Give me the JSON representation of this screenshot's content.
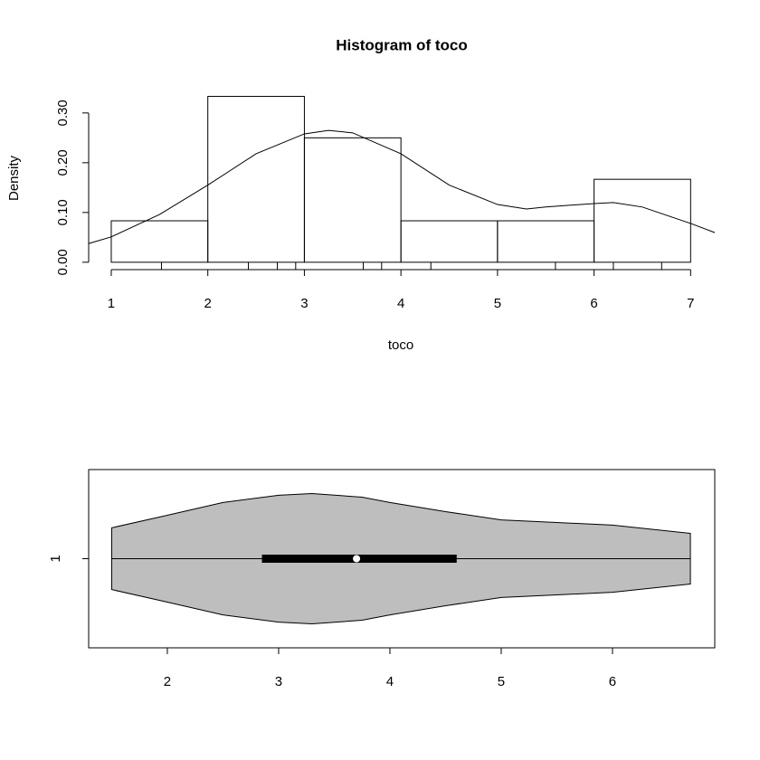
{
  "chart_data": [
    {
      "type": "histogram",
      "title": "Histogram of toco",
      "xlabel": "toco",
      "ylabel": "Density",
      "bins": [
        1,
        2,
        3,
        4,
        5,
        6,
        7
      ],
      "values": [
        0.0833,
        0.3333,
        0.25,
        0.0833,
        0.0833,
        0.1667
      ],
      "xlim": [
        0.766,
        7.25
      ],
      "xticks": [
        1,
        2,
        3,
        4,
        5,
        6,
        7
      ],
      "ylim": [
        -0.013,
        0.347
      ],
      "yticks": [
        {
          "value": 0,
          "label": "0.00"
        },
        {
          "value": 0.1,
          "label": "0.10"
        },
        {
          "value": 0.2,
          "label": "0.20"
        },
        {
          "value": 0.3,
          "label": "0.30"
        }
      ],
      "rug": [
        1.52,
        2.42,
        2.72,
        2.91,
        3.61,
        3.8,
        4.31,
        5.6,
        6.2,
        6.7
      ],
      "density": {
        "x": [
          0.6,
          1.0,
          1.5,
          2.0,
          2.5,
          3.0,
          3.25,
          3.5,
          4.0,
          4.5,
          5.0,
          5.3,
          5.5,
          6.0,
          6.2,
          6.5,
          7.0,
          7.3,
          7.5
        ],
        "y": [
          0.028,
          0.051,
          0.096,
          0.155,
          0.218,
          0.258,
          0.265,
          0.26,
          0.218,
          0.155,
          0.116,
          0.107,
          0.111,
          0.118,
          0.12,
          0.111,
          0.078,
          0.056,
          0.045
        ]
      }
    },
    {
      "type": "violin",
      "xlim": [
        1.293,
        6.919
      ],
      "xticks": [
        2,
        3,
        4,
        5,
        6
      ],
      "ylim": [
        0.5,
        1.5
      ],
      "yticks": [
        {
          "value": 1,
          "label": "1"
        }
      ],
      "color": "#bebebe",
      "x": [
        1.5,
        2.0,
        2.5,
        3.0,
        3.3,
        3.75,
        4.0,
        4.5,
        5.0,
        5.5,
        6.0,
        6.7
      ],
      "density": [
        0.128,
        0.18,
        0.233,
        0.263,
        0.27,
        0.255,
        0.233,
        0.195,
        0.161,
        0.15,
        0.139,
        0.105
      ],
      "min": 1.5,
      "q1": 2.85,
      "median": 3.7,
      "q3": 4.6,
      "max": 6.7
    }
  ]
}
